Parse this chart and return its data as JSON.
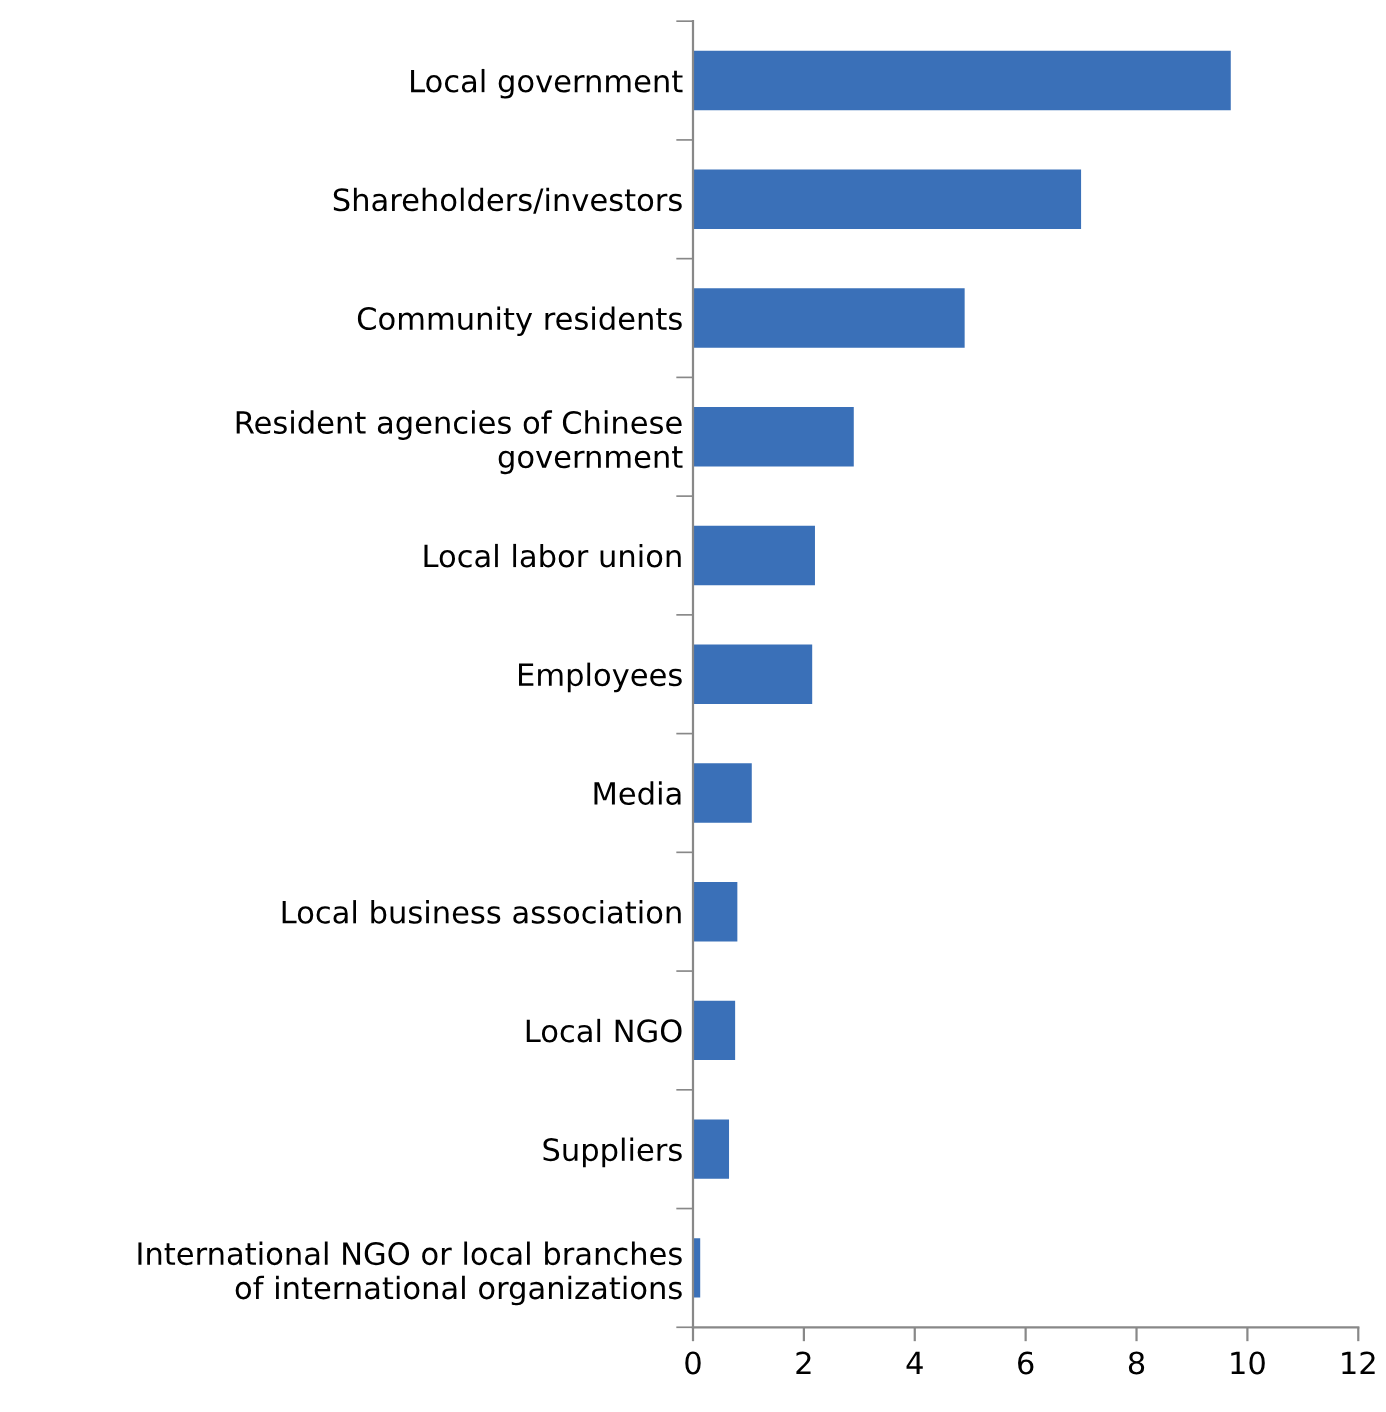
{
  "chart_data": {
    "type": "bar",
    "orientation": "horizontal",
    "categories": [
      "Local government",
      "Shareholders/investors",
      "Community residents",
      "Resident agencies of Chinese\ngovernment",
      "Local labor union",
      "Employees",
      "Media",
      "Local business association",
      "Local NGO",
      "Suppliers",
      "International NGO or local branches\nof international organizations"
    ],
    "values": [
      9.7,
      7.0,
      4.9,
      2.9,
      2.2,
      2.15,
      1.06,
      0.8,
      0.76,
      0.65,
      0.13
    ],
    "color": "#3a70b8",
    "xlim": [
      0,
      12
    ],
    "xticks": [
      0,
      2,
      4,
      6,
      8,
      10,
      12
    ],
    "grid": false,
    "legend": false
  }
}
